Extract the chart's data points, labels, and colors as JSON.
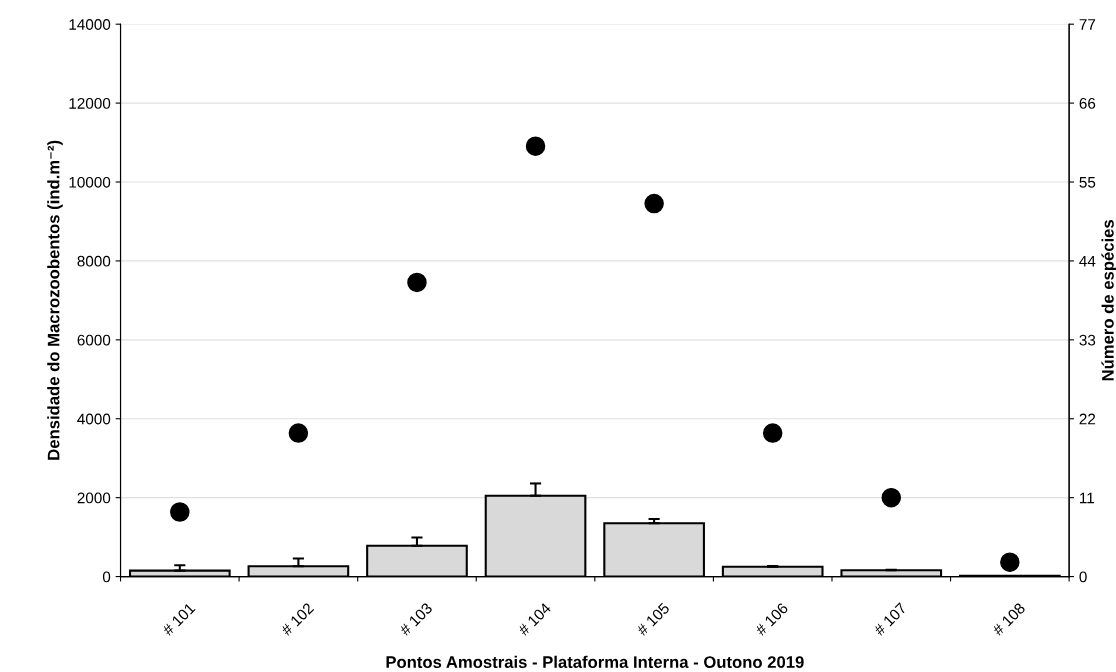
{
  "chart_data": {
    "type": "bar",
    "xlabel": "Pontos Amostrais - Plataforma Interna - Outono 2019",
    "ylabel": "Densidade do Macrozoobentos (ind.m⁻²)",
    "y2label": "Número de espécies",
    "categories": [
      "# 101",
      "# 102",
      "# 103",
      "# 104",
      "# 105",
      "# 106",
      "# 107",
      "# 108"
    ],
    "series": [
      {
        "color": "#d9d9d9",
        "values": [
          150,
          260,
          780,
          2050,
          1350,
          250,
          160,
          20
        ],
        "errors": [
          135,
          200,
          210,
          310,
          110,
          15,
          15,
          null
        ]
      },
      {
        "type": "scatter",
        "axis": "y2",
        "color": "#000000",
        "values": [
          9,
          20,
          41,
          60,
          52,
          20,
          11,
          2
        ]
      }
    ],
    "ylim": [
      0,
      14000
    ],
    "yticks": [
      0,
      2000,
      4000,
      6000,
      8000,
      10000,
      12000,
      14000
    ],
    "y2lim": [
      0,
      77
    ],
    "y2ticks": [
      0,
      11,
      22,
      33,
      44,
      55,
      66,
      77
    ],
    "grid": "y",
    "marker": "circle",
    "legend": false
  }
}
